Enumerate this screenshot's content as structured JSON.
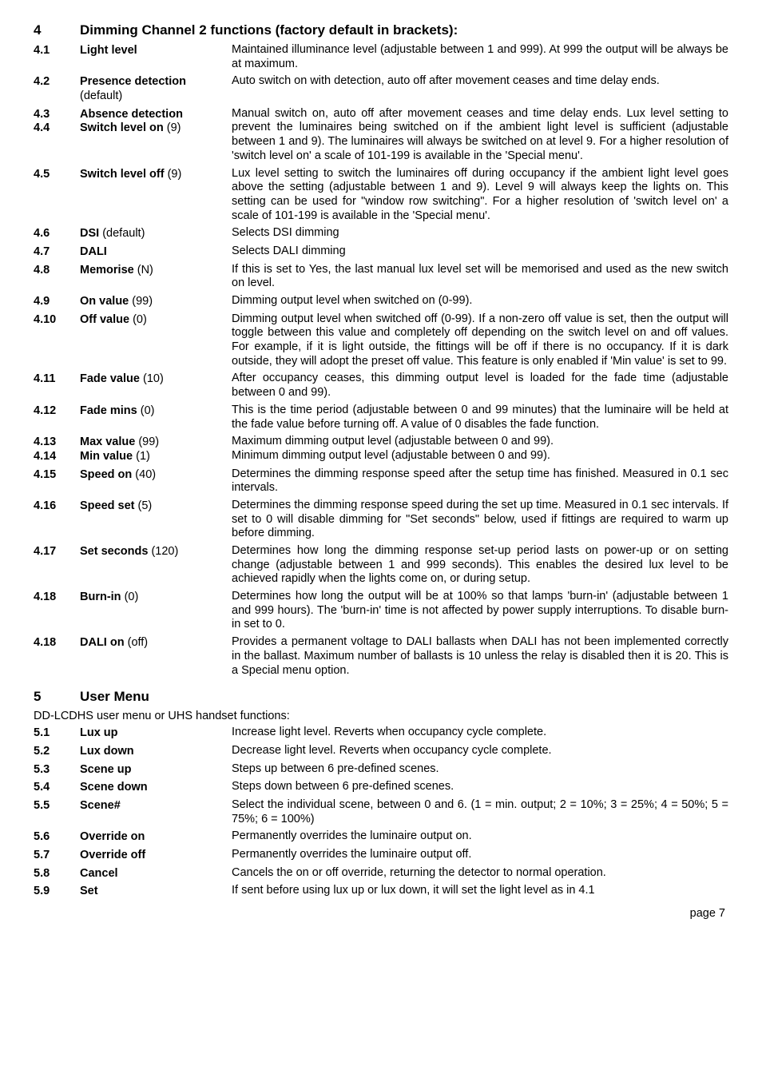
{
  "section4": {
    "number": "4",
    "title": "Dimming Channel 2 functions (factory default in brackets):",
    "rows": [
      {
        "num": "4.1",
        "label": "Light level",
        "def": "",
        "desc": "Maintained illuminance level (adjustable between 1 and 999). At 999 the output will be always be at maximum."
      },
      {
        "num": "4.2",
        "label": "Presence detection",
        "def": "(default)",
        "desc": "Auto switch on with detection, auto off after movement ceases and time delay ends."
      },
      {
        "num": "4.3\n4.4",
        "label": "Absence detection\nSwitch level on",
        "def": "(9)",
        "desc": "Manual switch on, auto off after movement ceases and time delay ends. Lux level setting to prevent the luminaires being switched on if the ambient light level is sufficient (adjustable between 1 and 9). The luminaires will always be switched on at level 9. For a higher resolution of 'switch level on' a scale of 101-199 is available in the 'Special menu'."
      },
      {
        "num": "4.5",
        "label": "Switch level off",
        "def": "(9)",
        "desc": "Lux level setting to switch the luminaires off during occupancy if the ambient light level goes above the setting (adjustable between 1 and 9). Level 9 will always keep the lights on. This setting can be used for \"window row switching\". For a higher resolution of 'switch level on' a scale of 101-199 is available in the 'Special menu'."
      },
      {
        "num": "4.6",
        "label": "DSI",
        "def": "(default)",
        "desc": "Selects DSI dimming"
      },
      {
        "num": "4.7",
        "label": "DALI",
        "def": "",
        "desc": "Selects DALI dimming"
      },
      {
        "num": "4.8",
        "label": "Memorise",
        "def": "(N)",
        "desc": "If this is set to Yes, the last manual lux level set will be memorised and used as the new switch on level."
      },
      {
        "num": "4.9",
        "label": "On value",
        "def": "(99)",
        "desc": "Dimming output level when switched on (0-99)."
      },
      {
        "num": "4.10",
        "label": "Off value",
        "def": "(0)",
        "desc": "Dimming output level when switched off (0-99). If a non-zero off value is set, then the output will toggle between this value and completely off depending on the switch level on and off values. For example, if it is light outside, the fittings will be off if there is no occupancy. If it is dark outside, they will adopt the preset off value. This feature is only enabled if 'Min value' is set to 99."
      },
      {
        "num": "4.11",
        "label": "Fade value",
        "def": "(10)",
        "desc": "After occupancy ceases, this dimming output level is loaded for the fade time (adjustable between 0 and 99)."
      },
      {
        "num": "4.12",
        "label": "Fade mins",
        "def": "(0)",
        "desc": "This is the time period (adjustable between 0 and 99 minutes) that the luminaire will be held at the fade value before turning off. A value of 0 disables the fade function."
      },
      {
        "num": "4.13\n4.14",
        "label": "Max value|(99)\nMin value|(1)",
        "def": "",
        "desc": "Maximum dimming output level (adjustable between 0 and 99).\nMinimum dimming output level (adjustable between 0 and 99)."
      },
      {
        "num": "4.15",
        "label": "Speed on",
        "def": "(40)",
        "desc": "Determines the dimming response speed after the setup time has finished. Measured in 0.1 sec intervals."
      },
      {
        "num": "4.16",
        "label": "Speed set",
        "def": "(5)",
        "desc": "Determines the dimming response speed during the set up time. Measured in 0.1 sec intervals. If set to 0 will disable dimming for \"Set seconds\" below, used if fittings are required to warm up before dimming."
      },
      {
        "num": "4.17",
        "label": "Set seconds",
        "def": "(120)",
        "desc": "Determines how long the dimming response set-up period lasts on power-up or on setting change (adjustable between 1 and 999 seconds). This enables the desired lux level to be achieved rapidly when the lights come on, or during setup."
      },
      {
        "num": "4.18",
        "label": "Burn-in",
        "def": "(0)",
        "desc": "Determines how long the output will be at 100% so that lamps 'burn-in' (adjustable between 1 and 999 hours). The 'burn-in' time is not affected by power supply interruptions. To disable burn-in set to 0."
      },
      {
        "num": "4.18",
        "label": "DALI on",
        "def": "(off)",
        "desc": "Provides a permanent voltage to DALI ballasts when DALI has not been implemented correctly in the ballast. Maximum number of ballasts is 10 unless the relay is disabled then it is 20. This is a Special menu option."
      }
    ]
  },
  "section5": {
    "number": "5",
    "title": "User Menu",
    "subhead": "DD-LCDHS user menu or UHS handset functions:",
    "rows": [
      {
        "num": "5.1",
        "label": "Lux up",
        "def": "",
        "desc": "Increase light level. Reverts when occupancy cycle complete."
      },
      {
        "num": "5.2",
        "label": "Lux down",
        "def": "",
        "desc": "Decrease light level. Reverts when occupancy cycle complete."
      },
      {
        "num": "5.3",
        "label": "Scene up",
        "def": "",
        "desc": "Steps up between 6 pre-defined scenes."
      },
      {
        "num": "5.4",
        "label": "Scene down",
        "def": "",
        "desc": "Steps down between 6 pre-defined scenes."
      },
      {
        "num": "5.5",
        "label": "Scene#",
        "def": "",
        "desc": "Select the individual scene, between 0 and 6. (1 = min. output; 2 = 10%; 3 = 25%; 4 = 50%; 5 = 75%; 6 = 100%)"
      },
      {
        "num": "5.6",
        "label": "Override on",
        "def": "",
        "desc": "Permanently overrides the luminaire output on."
      },
      {
        "num": "5.7",
        "label": "Override off",
        "def": "",
        "desc": "Permanently overrides the luminaire output off."
      },
      {
        "num": "5.8",
        "label": "Cancel",
        "def": "",
        "desc": "Cancels the on or off override, returning the detector to normal operation."
      },
      {
        "num": "5.9",
        "label": "Set",
        "def": "",
        "desc": "If sent before using lux up or lux down, it will set the light level as in 4.1"
      }
    ]
  },
  "footer": "page 7"
}
